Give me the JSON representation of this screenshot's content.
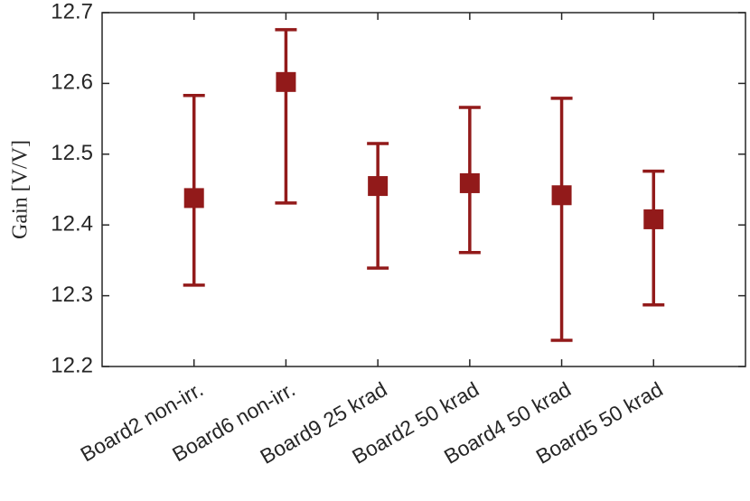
{
  "chart_data": {
    "type": "errorbar",
    "y_label": "Gain [V/V]",
    "categories": [
      "Board2 non-irr.",
      "Board6 non-irr.",
      "Board9 25 krad",
      "Board2 50 krad",
      "Board4 50 krad",
      "Board5 50 krad"
    ],
    "series": [
      {
        "color": "#921a1a",
        "values": [
          12.438,
          12.602,
          12.455,
          12.459,
          12.442,
          12.408
        ],
        "lower": [
          12.315,
          12.431,
          12.339,
          12.361,
          12.237,
          12.287
        ],
        "upper": [
          12.583,
          12.676,
          12.515,
          12.566,
          12.579,
          12.476
        ]
      }
    ],
    "ylim": [
      12.2,
      12.7
    ],
    "yticks": [
      12.2,
      12.3,
      12.4,
      12.5,
      12.6,
      12.7
    ],
    "grid": false
  }
}
